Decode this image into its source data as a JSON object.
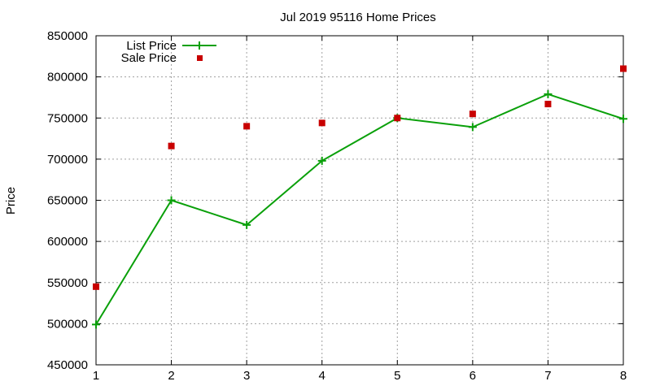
{
  "chart_data": {
    "type": "line",
    "title": "Jul 2019 95116 Home Prices",
    "xlabel": "",
    "ylabel": "Price",
    "x": [
      1,
      2,
      3,
      4,
      5,
      6,
      7,
      8
    ],
    "xticks": [
      "1",
      "2",
      "3",
      "4",
      "5",
      "6",
      "7",
      "8"
    ],
    "xlim": [
      1,
      8
    ],
    "ylim": [
      450000,
      850000
    ],
    "yticks": [
      "450000",
      "500000",
      "550000",
      "600000",
      "650000",
      "700000",
      "750000",
      "800000",
      "850000"
    ],
    "grid": true,
    "legend_position": "top-left",
    "series": [
      {
        "name": "List Price",
        "style": "line-with-plus-markers",
        "color": "#0aa00a",
        "values": [
          499000,
          650000,
          620000,
          698000,
          750000,
          739000,
          779000,
          749000
        ]
      },
      {
        "name": "Sale Price",
        "style": "square-markers",
        "color": "#c80000",
        "values": [
          545000,
          716000,
          740000,
          744000,
          750000,
          755000,
          767000,
          810000
        ]
      }
    ]
  }
}
